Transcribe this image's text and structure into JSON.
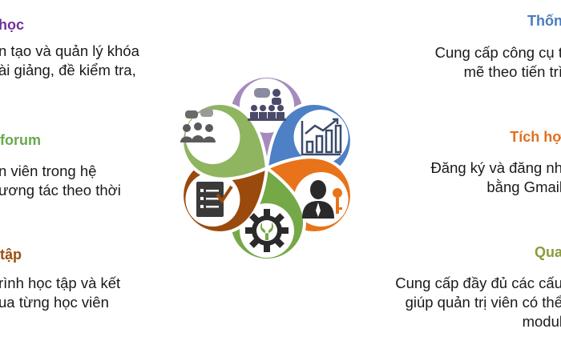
{
  "colors": {
    "purple": "#7030a0",
    "blue": "#4a7cc0",
    "orange": "#e07020",
    "green": "#6aa84f",
    "olive": "#8a9c3a",
    "brown": "#9a4f10",
    "petal_purple": "#a58bbd",
    "petal_blue": "#4e80c5",
    "petal_orange": "#e8731a",
    "petal_green_top": "#8fb560",
    "petal_brown": "#9a4a0c",
    "petal_green_bottom": "#75a847"
  },
  "left": {
    "item1": {
      "title": "học",
      "lines": [
        "n tạo và quản lý khóa",
        "ài giảng, đề kiểm tra,"
      ]
    },
    "item2": {
      "title": "forum",
      "lines": [
        "n viên trong hệ",
        "ương tác theo thời"
      ]
    },
    "item3": {
      "title": "tập",
      "lines": [
        "rình học tập và kết",
        "ua từng học viên"
      ]
    }
  },
  "right": {
    "item1": {
      "title": "Thốn",
      "lines": [
        "Cung cấp công cụ t",
        "mẽ theo tiến trì"
      ]
    },
    "item2": {
      "title": "Tích hợ",
      "lines": [
        "Đăng ký và đăng nh",
        "bằng Gmail"
      ]
    },
    "item3": {
      "title": "Qua",
      "lines": [
        "Cung cấp đầy đủ các cấu",
        "giúp quản trị viên có thể",
        "modul"
      ]
    }
  },
  "icons": {
    "top": "meeting-presentation-icon",
    "top_right": "bar-chart-growth-icon",
    "bottom_right": "admin-with-key-icon",
    "bottom": "gear-wrench-icon",
    "bottom_left": "checklist-icon",
    "top_left": "discussion-group-icon"
  }
}
